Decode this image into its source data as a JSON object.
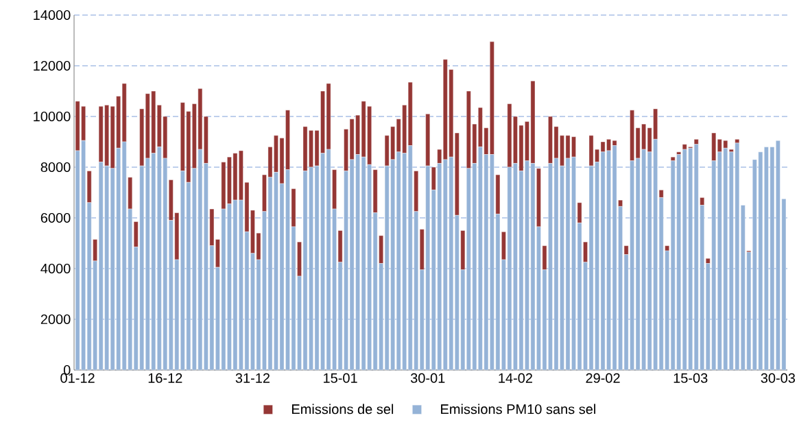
{
  "chart_data": {
    "type": "bar",
    "stacked": true,
    "grid": "y",
    "legend": "bottom",
    "categories": [
      "01-12",
      null,
      null,
      null,
      null,
      null,
      null,
      null,
      null,
      null,
      null,
      null,
      null,
      null,
      null,
      "16-12",
      null,
      null,
      null,
      null,
      null,
      null,
      null,
      null,
      null,
      null,
      null,
      null,
      null,
      null,
      "31-12",
      null,
      null,
      null,
      null,
      null,
      null,
      null,
      null,
      null,
      null,
      null,
      null,
      null,
      null,
      "15-01",
      null,
      null,
      null,
      null,
      null,
      null,
      null,
      null,
      null,
      null,
      null,
      null,
      null,
      null,
      "30-01",
      null,
      null,
      null,
      null,
      null,
      null,
      null,
      null,
      null,
      null,
      null,
      null,
      null,
      null,
      "14-02",
      null,
      null,
      null,
      null,
      null,
      null,
      null,
      null,
      null,
      null,
      null,
      null,
      null,
      null,
      "29-02",
      null,
      null,
      null,
      null,
      null,
      null,
      null,
      null,
      null,
      null,
      null,
      null,
      null,
      null,
      "15-03",
      null,
      null,
      null,
      null,
      null,
      null,
      null,
      null,
      null,
      null,
      null,
      null,
      null,
      null,
      "30-03",
      null
    ],
    "ylim": [
      0,
      14000
    ],
    "yticks": [
      0,
      2000,
      4000,
      6000,
      8000,
      10000,
      12000,
      14000
    ],
    "series": [
      {
        "name": "Emissions PM10 sans sel",
        "color": "#95b3d7",
        "values": [
          8650,
          9050,
          6600,
          4300,
          8200,
          8050,
          7950,
          8750,
          9000,
          6350,
          4850,
          8050,
          8350,
          8550,
          8800,
          8350,
          5900,
          4350,
          7850,
          7400,
          7950,
          8700,
          8150,
          4900,
          4050,
          6350,
          6550,
          6700,
          6700,
          5450,
          4600,
          4350,
          6250,
          7600,
          7800,
          7350,
          7900,
          5650,
          3700,
          7850,
          8000,
          8050,
          8550,
          8700,
          6350,
          4250,
          7850,
          8300,
          8500,
          8400,
          8100,
          6200,
          4200,
          8050,
          8300,
          8600,
          8550,
          8850,
          6250,
          3950,
          8050,
          7100,
          8150,
          8300,
          8400,
          6100,
          3950,
          7950,
          8150,
          8800,
          8500,
          8500,
          6150,
          4350,
          8000,
          8150,
          7850,
          8250,
          8150,
          5650,
          3950,
          8150,
          8350,
          8050,
          8350,
          8400,
          5800,
          4250,
          8050,
          8200,
          8600,
          8650,
          8850,
          6450,
          4550,
          8250,
          8350,
          8700,
          8600,
          9100,
          6800,
          4700,
          8250,
          8500,
          8700,
          8750,
          8900,
          6500,
          4200,
          8250,
          8600,
          8750,
          8600,
          8950,
          6500,
          4650,
          8300,
          8600,
          8800,
          8800,
          9050,
          6750
        ]
      },
      {
        "name": "Emissions de sel",
        "color": "#953735",
        "values": [
          1950,
          1350,
          1250,
          850,
          2200,
          2400,
          2450,
          2050,
          2300,
          1250,
          1000,
          2250,
          2550,
          2450,
          1650,
          1650,
          1600,
          1850,
          2700,
          2800,
          2550,
          2400,
          1850,
          1450,
          1100,
          1850,
          1850,
          1850,
          1950,
          1950,
          1700,
          1050,
          1450,
          1200,
          1450,
          1800,
          2350,
          1500,
          1350,
          1750,
          1450,
          1400,
          2450,
          2600,
          1550,
          1250,
          1650,
          1600,
          1550,
          2200,
          2300,
          1700,
          1100,
          1200,
          1300,
          1300,
          1900,
          2500,
          1600,
          1600,
          2050,
          900,
          550,
          3950,
          3450,
          3250,
          1550,
          3050,
          1550,
          1550,
          1050,
          4450,
          1550,
          1100,
          2500,
          1850,
          1800,
          1550,
          3250,
          2300,
          950,
          1850,
          1250,
          1200,
          900,
          800,
          800,
          800,
          1200,
          500,
          400,
          450,
          200,
          250,
          350,
          2000,
          1200,
          1000,
          950,
          1200,
          300,
          200,
          150,
          100,
          200,
          50,
          200,
          300,
          200,
          1100,
          500,
          300,
          100,
          150,
          0,
          50,
          0,
          0,
          0,
          0,
          0,
          0
        ]
      }
    ]
  }
}
